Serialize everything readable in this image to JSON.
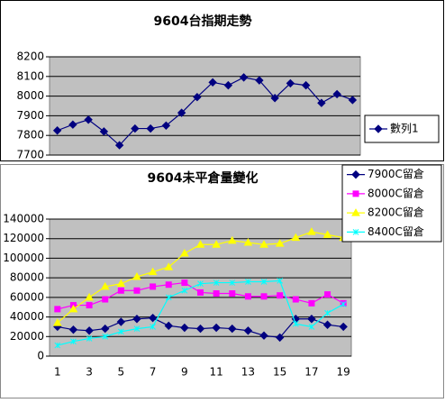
{
  "chart_data": [
    {
      "type": "line",
      "title": "9604台指期走勢",
      "categories": [
        null,
        null,
        null,
        null,
        null,
        null,
        null,
        null,
        null,
        null,
        null,
        null,
        null,
        null,
        null,
        null,
        null,
        null,
        null,
        null
      ],
      "series": [
        {
          "name": "數列1",
          "color": "#000080",
          "values": [
            7825,
            7855,
            7880,
            7820,
            7750,
            7835,
            7835,
            7850,
            7915,
            7995,
            8070,
            8055,
            8095,
            8080,
            7990,
            8065,
            8055,
            7965,
            8010,
            7980
          ]
        }
      ],
      "ylim": [
        7700,
        8200
      ],
      "yticks": [
        7700,
        7800,
        7900,
        8000,
        8100,
        8200
      ],
      "grid": true,
      "legend": "right"
    },
    {
      "type": "line",
      "title": "9604未平倉量變化",
      "categories": [
        1,
        null,
        3,
        null,
        5,
        null,
        7,
        null,
        9,
        null,
        11,
        null,
        13,
        null,
        15,
        null,
        17,
        null,
        19
      ],
      "series": [
        {
          "name": "7900C留倉",
          "color": "#000080",
          "marker": "diamond",
          "values": [
            30000,
            27000,
            26000,
            28000,
            35000,
            38000,
            39000,
            31000,
            29000,
            28000,
            29000,
            28000,
            26000,
            21000,
            19000,
            38000,
            38000,
            32000,
            30000
          ]
        },
        {
          "name": "8000C留倉",
          "color": "#ff00ff",
          "marker": "square",
          "values": [
            48000,
            52000,
            52000,
            58000,
            67000,
            67000,
            71000,
            73000,
            75000,
            65000,
            64000,
            64000,
            61000,
            61000,
            62000,
            58000,
            54000,
            63000,
            54000
          ]
        },
        {
          "name": "8200C留倉",
          "color": "#ffff00",
          "marker": "triangle",
          "values": [
            34000,
            48000,
            60000,
            71000,
            74000,
            81000,
            86000,
            91000,
            105000,
            114000,
            114000,
            118000,
            116000,
            114000,
            115000,
            121000,
            127000,
            124000,
            121000
          ]
        },
        {
          "name": "8400C留倉",
          "color": "#00ffff",
          "marker": "x",
          "values": [
            11000,
            15000,
            18000,
            20000,
            25000,
            28000,
            30000,
            60000,
            67000,
            74000,
            75000,
            75000,
            76000,
            76000,
            77000,
            33000,
            30000,
            44000,
            53000
          ]
        }
      ],
      "ylim": [
        0,
        140000
      ],
      "yticks": [
        0,
        20000,
        40000,
        60000,
        80000,
        100000,
        120000,
        140000
      ],
      "grid": true,
      "legend": "top-right"
    }
  ]
}
